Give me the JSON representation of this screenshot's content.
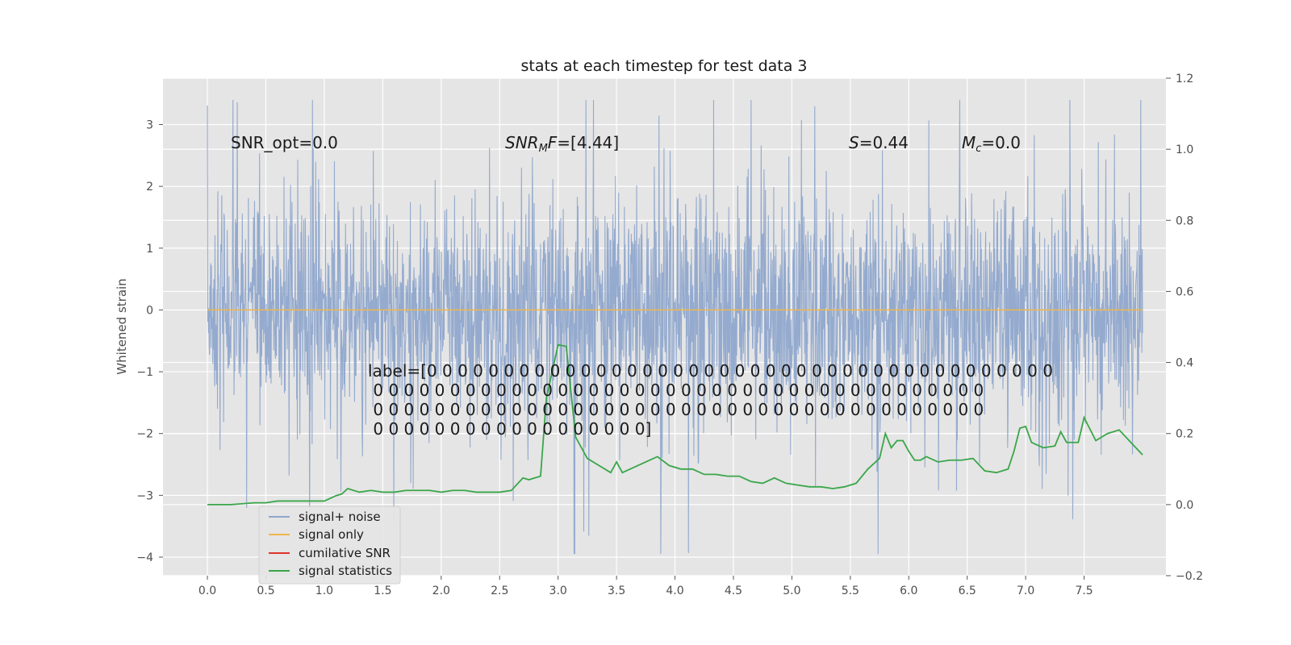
{
  "chart_data": {
    "type": "line",
    "title": "stats at each timestep for test data 3",
    "ylabel": "Whitened strain",
    "xlabel": "",
    "xlim": [
      -0.38,
      8.2
    ],
    "ylim": [
      -4.3,
      3.75
    ],
    "ylim_right": [
      -0.2,
      1.2
    ],
    "grid": true,
    "legend_placement": "lower-left",
    "x_ticks": [
      "0.0",
      "0.5",
      "1.0",
      "1.5",
      "2.0",
      "2.5",
      "3.0",
      "3.5",
      "4.0",
      "4.5",
      "5.0",
      "5.5",
      "6.0",
      "6.5",
      "7.0",
      "7.5"
    ],
    "y_ticks": [
      "3",
      "2",
      "1",
      "0",
      "−1",
      "−2",
      "−3",
      "−4"
    ],
    "y_ticks_right": [
      "1.2",
      "1.0",
      "0.8",
      "0.6",
      "0.4",
      "0.2",
      "0.0",
      "−0.2"
    ],
    "annotations": {
      "snr_opt": "SNR_opt=0.0",
      "snr_mf_a": "SNR",
      "snr_mf_sub": "M",
      "snr_mf_b": "F",
      "snr_mf_c": "=[4.44]",
      "s_a": "S",
      "s_b": "=0.44",
      "mc_a": "M",
      "mc_sub": "c",
      "mc_b": "=0.0",
      "label_lines": [
        "label=[0 0 0 0 0 0 0 0 0 0 0 0 0 0 0 0 0 0 0 0 0 0 0 0 0 0 0 0 0 0 0 0 0 0 0 0 0 0 0 0 0",
        " 0 0 0 0 0 0 0 0 0 0 0 0 0 0 0 0 0 0 0 0 0 0 0 0 0 0 0 0 0 0 0 0 0 0 0 0 0 0 0 0",
        " 0 0 0 0 0 0 0 0 0 0 0 0 0 0 0 0 0 0 0 0 0 0 0 0 0 0 0 0 0 0 0 0 0 0 0 0 0 0 0 0",
        " 0 0 0 0 0 0 0 0 0 0 0 0 0 0 0 0 0 0]"
      ]
    },
    "series": [
      {
        "name": "signal+ noise",
        "color": "#8fa6cc",
        "axis": "left",
        "style": "dense noise, values roughly within -3.9..3.4"
      },
      {
        "name": "signal only",
        "color": "#f0b64c",
        "axis": "left",
        "x": [
          0,
          8
        ],
        "values": [
          0,
          0
        ]
      },
      {
        "name": "cumilative SNR",
        "color": "#e0342c",
        "axis": "right",
        "x": [],
        "values": []
      },
      {
        "name": "signal statistics",
        "color": "#3aa64a",
        "axis": "right",
        "x": [
          0.0,
          0.2,
          0.4,
          0.5,
          0.6,
          0.8,
          0.9,
          1.0,
          1.1,
          1.15,
          1.2,
          1.3,
          1.4,
          1.5,
          1.6,
          1.7,
          1.8,
          1.9,
          2.0,
          2.1,
          2.2,
          2.3,
          2.4,
          2.5,
          2.6,
          2.7,
          2.75,
          2.85,
          2.9,
          3.0,
          3.07,
          3.15,
          3.25,
          3.35,
          3.45,
          3.5,
          3.55,
          3.65,
          3.75,
          3.85,
          3.95,
          4.05,
          4.15,
          4.25,
          4.35,
          4.45,
          4.55,
          4.65,
          4.75,
          4.85,
          4.95,
          5.05,
          5.15,
          5.25,
          5.35,
          5.45,
          5.55,
          5.65,
          5.75,
          5.8,
          5.85,
          5.9,
          5.95,
          6.0,
          6.05,
          6.1,
          6.15,
          6.25,
          6.35,
          6.45,
          6.55,
          6.65,
          6.75,
          6.85,
          6.9,
          6.95,
          7.0,
          7.05,
          7.15,
          7.25,
          7.3,
          7.35,
          7.45,
          7.5,
          7.6,
          7.7,
          7.8,
          7.9,
          8.0
        ],
        "values": [
          0.0,
          0.0,
          0.005,
          0.005,
          0.01,
          0.01,
          0.01,
          0.01,
          0.025,
          0.03,
          0.045,
          0.035,
          0.04,
          0.035,
          0.035,
          0.04,
          0.04,
          0.04,
          0.035,
          0.04,
          0.04,
          0.035,
          0.035,
          0.035,
          0.04,
          0.075,
          0.07,
          0.08,
          0.3,
          0.45,
          0.445,
          0.19,
          0.13,
          0.11,
          0.09,
          0.12,
          0.09,
          0.105,
          0.12,
          0.135,
          0.11,
          0.1,
          0.1,
          0.085,
          0.085,
          0.08,
          0.08,
          0.065,
          0.06,
          0.075,
          0.06,
          0.055,
          0.05,
          0.05,
          0.045,
          0.05,
          0.06,
          0.1,
          0.13,
          0.2,
          0.16,
          0.18,
          0.18,
          0.15,
          0.125,
          0.125,
          0.135,
          0.12,
          0.125,
          0.125,
          0.13,
          0.095,
          0.09,
          0.1,
          0.15,
          0.215,
          0.22,
          0.175,
          0.16,
          0.165,
          0.205,
          0.175,
          0.175,
          0.245,
          0.18,
          0.2,
          0.21,
          0.175,
          0.14
        ]
      }
    ]
  }
}
